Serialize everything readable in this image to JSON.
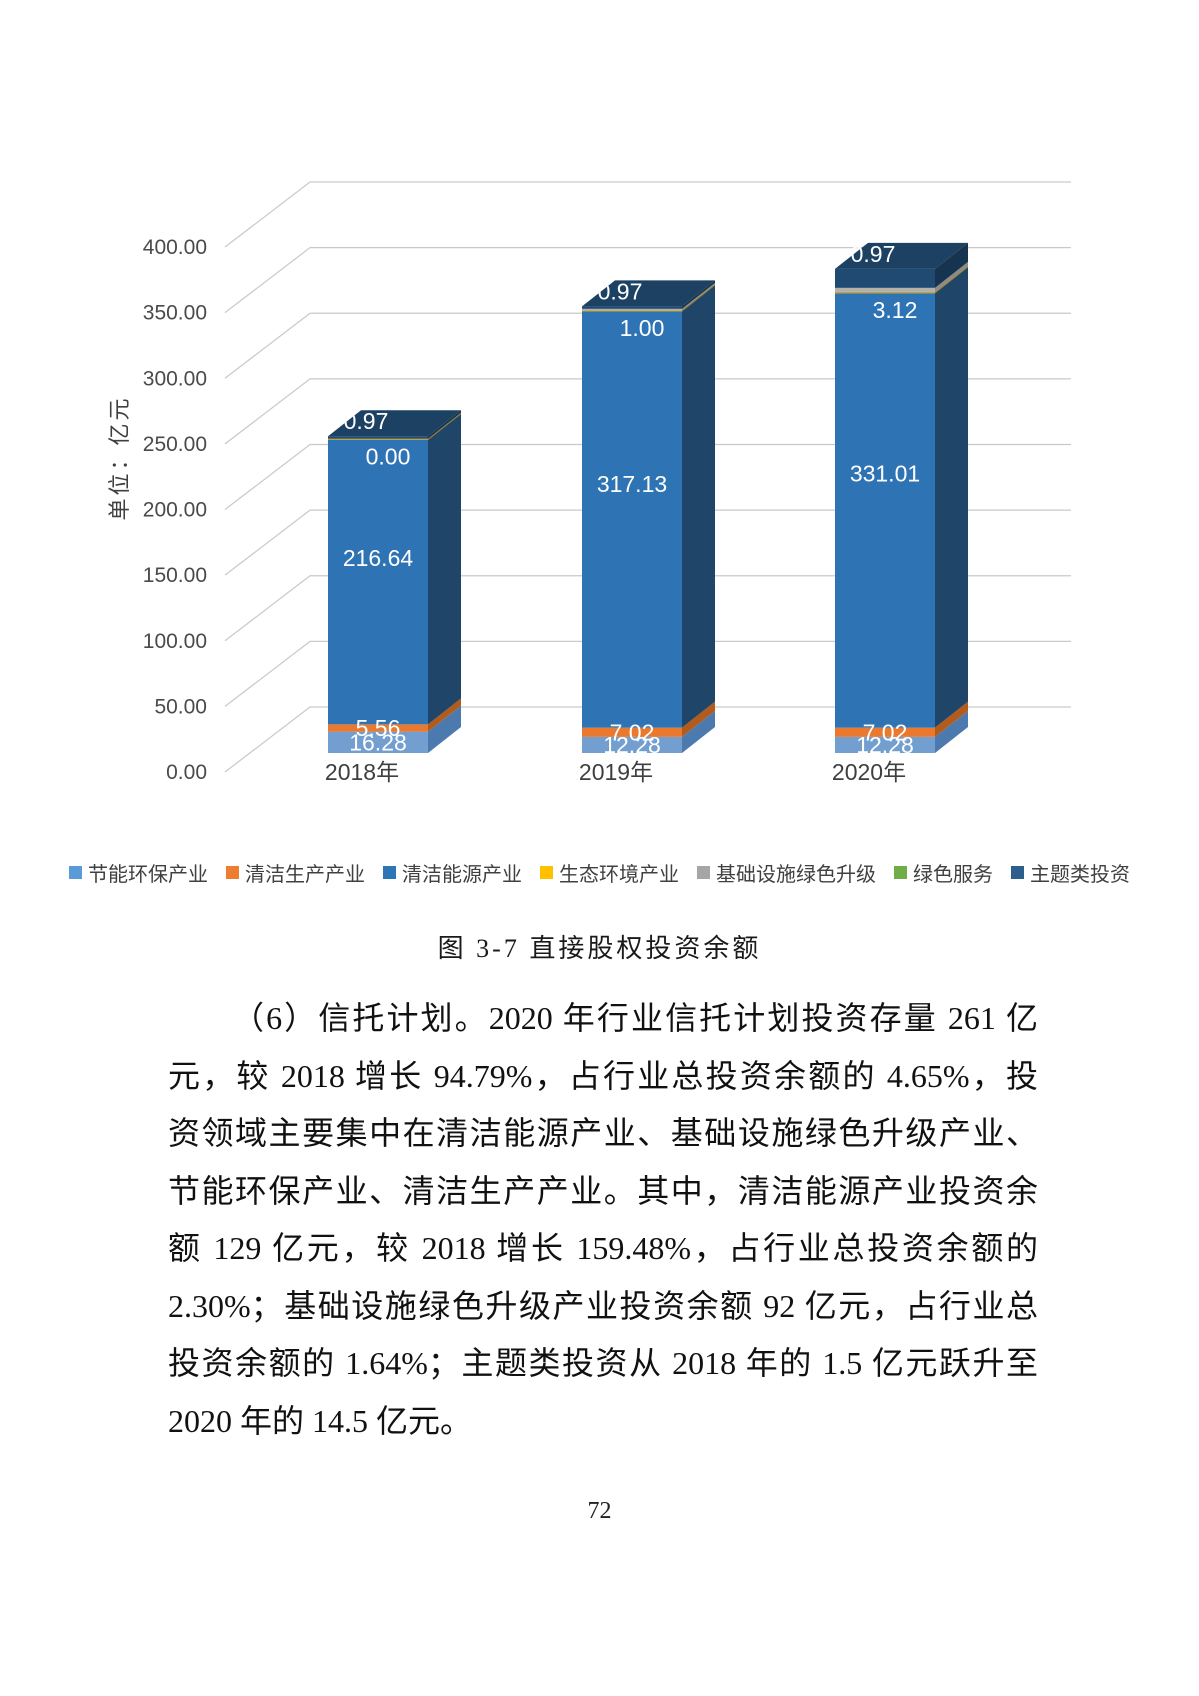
{
  "page_number": "72",
  "figure": {
    "caption": "图 3-7 直接股权投资余额"
  },
  "chart_data": {
    "type": "bar",
    "variant": "3d-stacked",
    "title": "直接股权投资余额",
    "unit_label": "单位：亿元",
    "categories": [
      "2018年",
      "2019年",
      "2020年"
    ],
    "series": [
      {
        "name": "节能环保产业",
        "color": "#5B9BD5",
        "values": [
          16.28,
          12.28,
          12.28
        ],
        "labels": [
          "16.28",
          "12.28",
          "12.28"
        ]
      },
      {
        "name": "清洁生产产业",
        "color": "#ED7D31",
        "values": [
          5.56,
          7.02,
          7.02
        ],
        "labels": [
          "5.56",
          "7.02",
          "7.02"
        ]
      },
      {
        "name": "清洁能源产业",
        "color": "#2E75B6",
        "values": [
          216.64,
          317.13,
          331.01
        ],
        "labels": [
          "216.64",
          "317.13",
          "331.01"
        ]
      },
      {
        "name": "生态环境产业",
        "color": "#FFC000",
        "values": [
          0.97,
          0.97,
          0.97
        ],
        "labels": [
          "0.97",
          "0.97",
          "0.97"
        ]
      },
      {
        "name": "基础设施绿色升级",
        "color": "#A6A6A6",
        "values": [
          0.0,
          1.0,
          3.12
        ],
        "labels": [
          "0.00",
          "1.00",
          "3.12"
        ]
      },
      {
        "name": "绿色服务",
        "color": "#70AD47",
        "values": [
          null,
          null,
          null
        ],
        "labels": [
          "",
          "",
          ""
        ]
      },
      {
        "name": "主题类投资",
        "color": "#2C5F8E",
        "values": [
          null,
          null,
          null
        ],
        "labels": [
          "",
          "",
          ""
        ]
      }
    ],
    "y_ticks": [
      "0.00",
      "50.00",
      "100.00",
      "150.00",
      "200.00",
      "250.00",
      "300.00",
      "350.00",
      "400.00"
    ],
    "ylim": [
      0,
      400
    ],
    "grid": true,
    "legend_position": "bottom"
  },
  "paragraph": {
    "lines": [
      "（6）信托计划。2020 年行业信托计划投资存量 261 亿",
      "元，较 2018 增长 94.79%，占行业总投资余额的 4.65%，投",
      "资领域主要集中在清洁能源产业、基础设施绿色升级产业、",
      "节能环保产业、清洁生产产业。其中，清洁能源产业投资余",
      "额 129 亿元，较 2018 增长 159.48%，占行业总投资余额的",
      "2.30%；基础设施绿色升级产业投资余额 92 亿元，占行业总",
      "投资余额的 1.64%；主题类投资从 2018 年的 1.5 亿元跃升至",
      "2020 年的 14.5 亿元。"
    ]
  }
}
